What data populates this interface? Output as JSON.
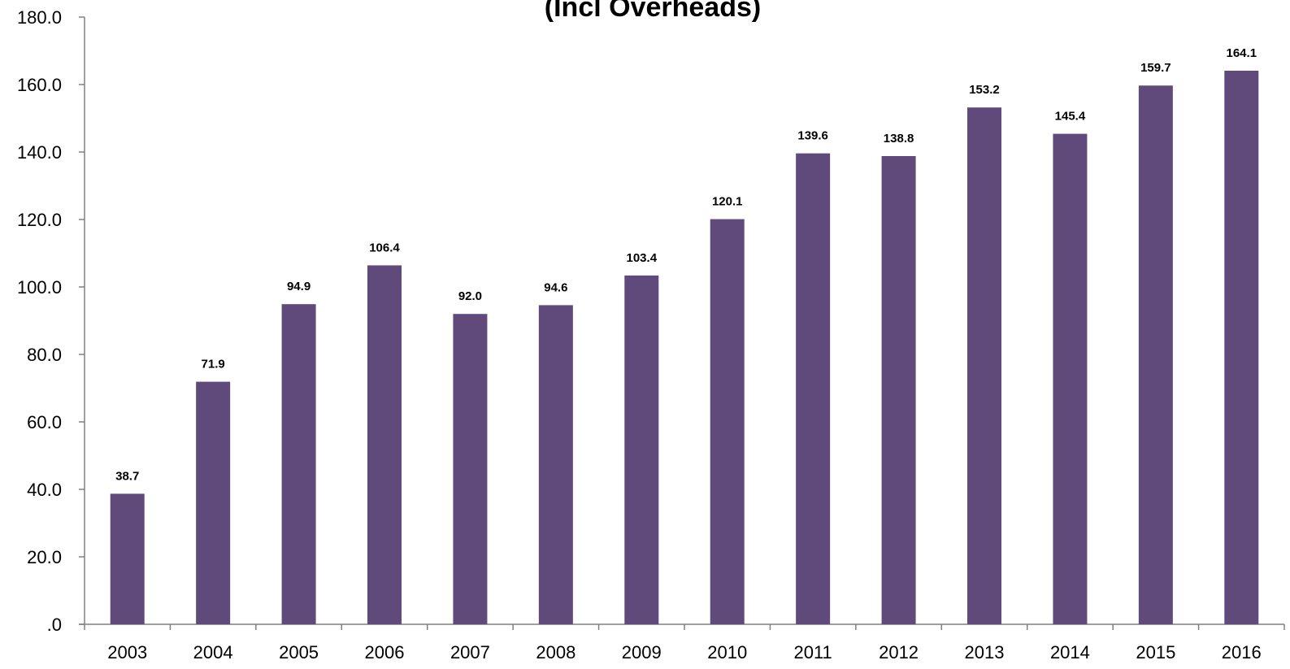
{
  "chart_data": {
    "type": "bar",
    "title": "(Incl Overheads)",
    "xlabel": "",
    "ylabel": "",
    "categories": [
      "2003",
      "2004",
      "2005",
      "2006",
      "2007",
      "2008",
      "2009",
      "2010",
      "2011",
      "2012",
      "2013",
      "2014",
      "2015",
      "2016"
    ],
    "values": [
      38.7,
      71.9,
      94.9,
      106.4,
      92.0,
      94.6,
      103.4,
      120.1,
      139.6,
      138.8,
      153.2,
      145.4,
      159.7,
      164.1
    ],
    "data_labels": [
      "38.7",
      "71.9",
      "94.9",
      "106.4",
      "92.0",
      "94.6",
      "103.4",
      "120.1",
      "139.6",
      "138.8",
      "153.2",
      "145.4",
      "159.7",
      "164.1"
    ],
    "ylim": [
      0,
      180
    ],
    "y_ticks": [
      0,
      20,
      40,
      60,
      80,
      100,
      120,
      140,
      160,
      180
    ],
    "y_tick_labels": [
      ".0",
      "20.0",
      "40.0",
      "60.0",
      "80.0",
      "100.0",
      "120.0",
      "140.0",
      "160.0",
      "180.0"
    ],
    "grid": false,
    "legend": "none",
    "bar_color": "#604a7b"
  }
}
